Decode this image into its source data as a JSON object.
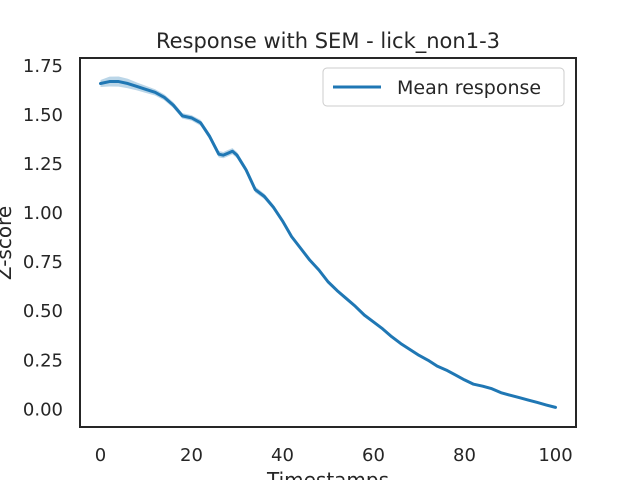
{
  "chart_data": {
    "type": "line",
    "title": "Response with SEM - lick_non1-3",
    "xlabel": "Timestamps",
    "ylabel": "Z-score",
    "xlim": [
      -4.5,
      104.5
    ],
    "ylim": [
      -0.09,
      1.79
    ],
    "xticks": [
      "0",
      "20",
      "40",
      "60",
      "80",
      "100"
    ],
    "yticks": [
      "0.00",
      "0.25",
      "0.50",
      "0.75",
      "1.00",
      "1.25",
      "1.50",
      "1.75"
    ],
    "grid": false,
    "legend": {
      "position": "top-right",
      "entries": [
        "Mean response"
      ]
    },
    "series": [
      {
        "name": "Mean response",
        "color": "#1f77b4",
        "band_color": "#1f77b4",
        "x": [
          0,
          2,
          4,
          6,
          8,
          10,
          12,
          14,
          16,
          18,
          20,
          22,
          24,
          26,
          27,
          28,
          29,
          30,
          32,
          34,
          36,
          38,
          40,
          42,
          44,
          46,
          48,
          50,
          52,
          54,
          56,
          58,
          60,
          62,
          64,
          66,
          68,
          70,
          72,
          74,
          76,
          78,
          80,
          82,
          84,
          86,
          88,
          90,
          92,
          94,
          96,
          98,
          100
        ],
        "y": [
          1.66,
          1.67,
          1.67,
          1.66,
          1.645,
          1.63,
          1.615,
          1.59,
          1.55,
          1.495,
          1.485,
          1.46,
          1.39,
          1.3,
          1.295,
          1.305,
          1.315,
          1.295,
          1.22,
          1.12,
          1.085,
          1.03,
          0.96,
          0.88,
          0.82,
          0.76,
          0.71,
          0.65,
          0.605,
          0.565,
          0.525,
          0.48,
          0.445,
          0.41,
          0.37,
          0.335,
          0.305,
          0.275,
          0.25,
          0.22,
          0.2,
          0.175,
          0.15,
          0.128,
          0.118,
          0.105,
          0.085,
          0.072,
          0.06,
          0.047,
          0.035,
          0.022,
          0.01
        ],
        "sem": [
          0.018,
          0.025,
          0.026,
          0.024,
          0.02,
          0.018,
          0.016,
          0.015,
          0.015,
          0.014,
          0.014,
          0.015,
          0.015,
          0.016,
          0.016,
          0.016,
          0.016,
          0.016,
          0.015,
          0.015,
          0.014,
          0.013,
          0.012,
          0.011,
          0.01,
          0.009,
          0.009,
          0.008,
          0.008,
          0.007,
          0.007,
          0.007,
          0.006,
          0.006,
          0.006,
          0.006,
          0.005,
          0.005,
          0.005,
          0.005,
          0.005,
          0.004,
          0.004,
          0.004,
          0.004,
          0.004,
          0.004,
          0.004,
          0.003,
          0.003,
          0.003,
          0.003,
          0.003
        ]
      }
    ]
  }
}
